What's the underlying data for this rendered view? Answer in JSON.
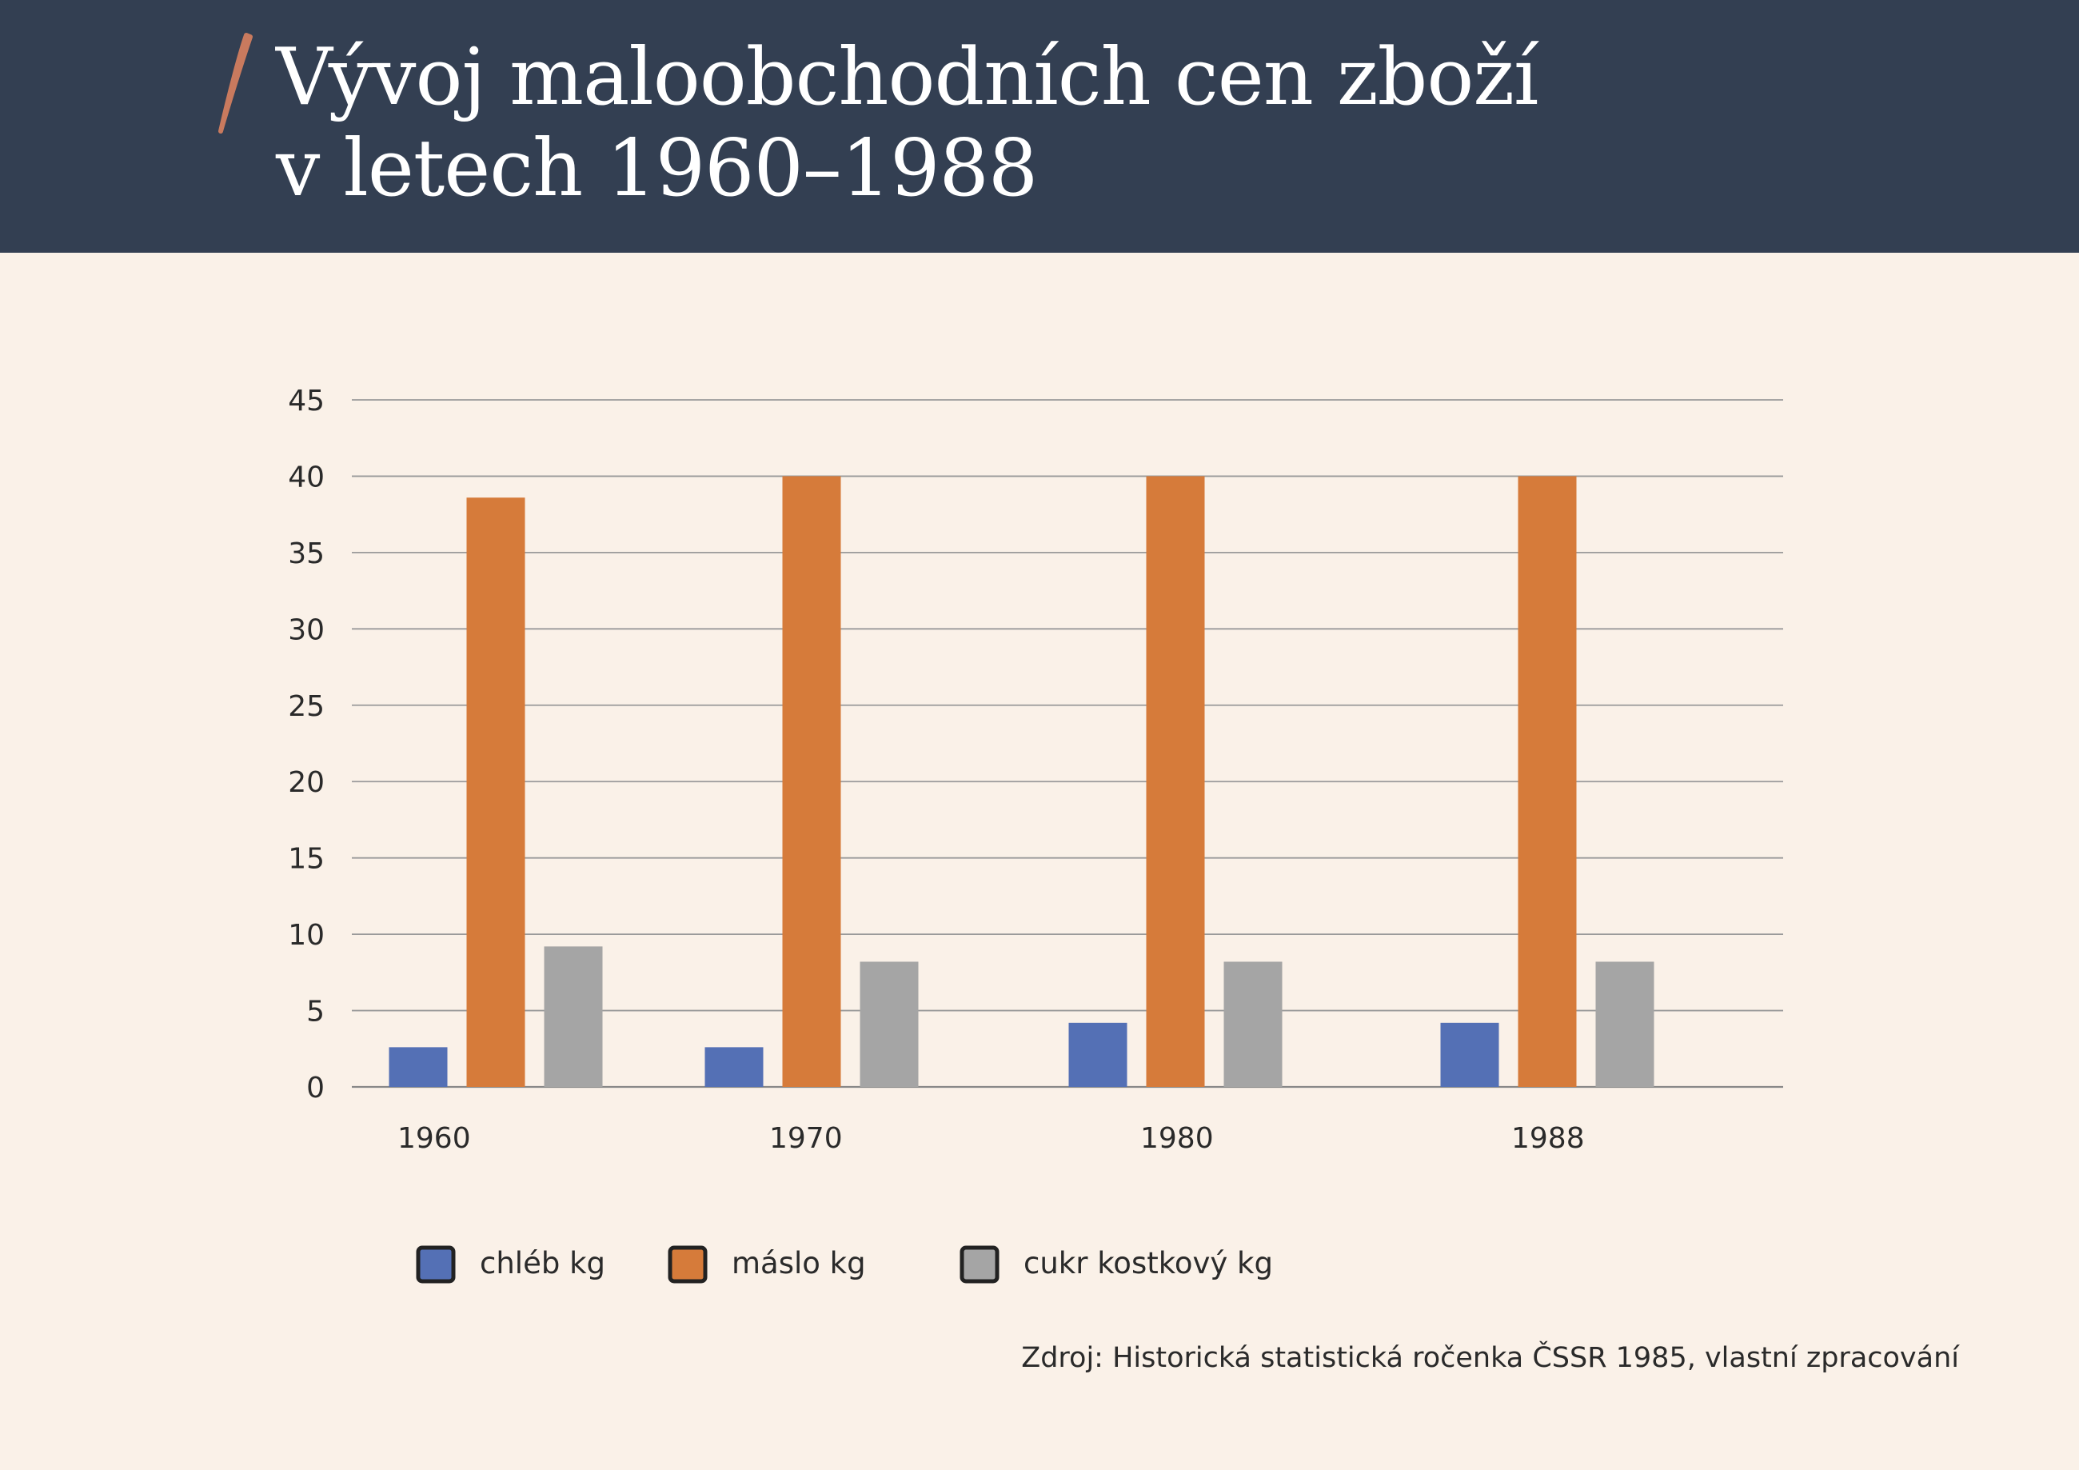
{
  "header": {
    "title_line1": "Vývoj maloobchodních cen zboží",
    "title_line2": "v letech 1960–1988",
    "background_color": "#333f52",
    "accent_color": "#c97a5e"
  },
  "chart_data": {
    "type": "bar",
    "title": "Vývoj maloobchodních cen zboží v letech 1960–1988",
    "xlabel": "",
    "ylabel": "",
    "categories": [
      "1960",
      "1970",
      "1980",
      "1988"
    ],
    "series": [
      {
        "name": "chléb kg",
        "color": "#5470b5",
        "values": [
          2.6,
          2.6,
          4.2,
          4.2
        ]
      },
      {
        "name": "máslo kg",
        "color": "#d67b3a",
        "values": [
          38.6,
          40,
          40,
          40
        ]
      },
      {
        "name": "cukr kostkový kg",
        "color": "#a5a5a5",
        "values": [
          9.2,
          8.2,
          8.2,
          8.2
        ]
      }
    ],
    "ylim": [
      0,
      45
    ],
    "yticks": [
      "0",
      "5",
      "10",
      "15",
      "20",
      "25",
      "30",
      "35",
      "40",
      "45"
    ],
    "grid": true,
    "legend_position": "bottom"
  },
  "source_note": "Zdroj: Historická statistická ročenka ČSSR 1985, vlastní zpracování"
}
